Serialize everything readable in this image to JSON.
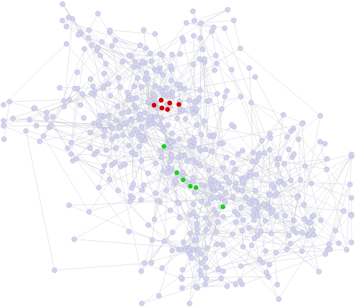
{
  "diagram": {
    "type": "network-graph",
    "layout": "force-directed",
    "background_color": "#ffffff",
    "edge_color": "#bfc0cf",
    "node_colors": {
      "default": "#d3d3f0",
      "highlighted_group_red": "#cc0000",
      "highlighted_group_green": "#22cc22"
    },
    "node_counts": {
      "red": 6,
      "green": 6
    }
  }
}
